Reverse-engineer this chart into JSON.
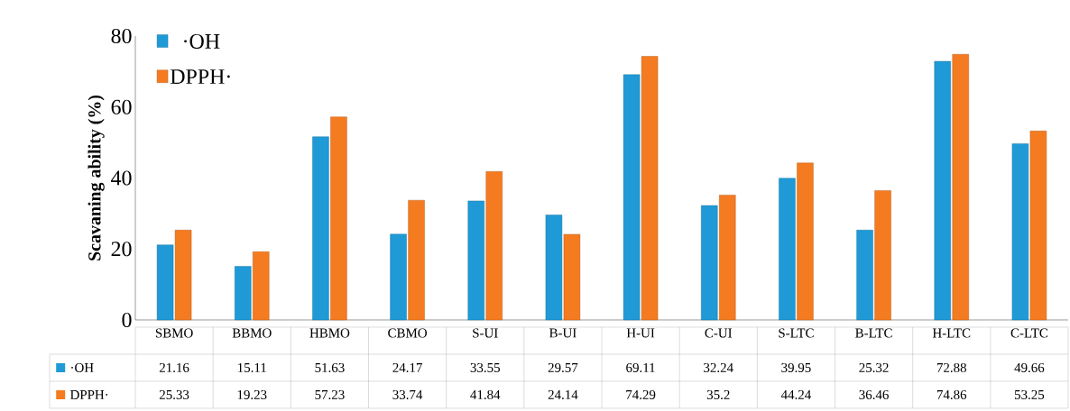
{
  "chart_data": {
    "type": "bar",
    "ylabel": "Scavaning ability (%)",
    "categories": [
      "SBMO",
      "BBMO",
      "HBMO",
      "CBMO",
      "S-UI",
      "B-UI",
      "H-UI",
      "C-UI",
      "S-LTC",
      "B-LTC",
      "H-LTC",
      "C-LTC"
    ],
    "series": [
      {
        "name": "·OH",
        "color": "#1f9ad6",
        "values": [
          21.16,
          15.11,
          51.63,
          24.17,
          33.55,
          29.57,
          69.11,
          32.24,
          39.95,
          25.32,
          72.88,
          49.66
        ]
      },
      {
        "name": "DPPH·",
        "color": "#f47b20",
        "values": [
          25.33,
          19.23,
          57.23,
          33.74,
          41.84,
          24.14,
          74.29,
          35.2,
          44.24,
          36.46,
          74.86,
          53.25
        ]
      }
    ],
    "ylim": [
      0,
      80
    ],
    "yticks": [
      0,
      20,
      40,
      60,
      80
    ],
    "legend": "top left",
    "data_labels": true
  }
}
